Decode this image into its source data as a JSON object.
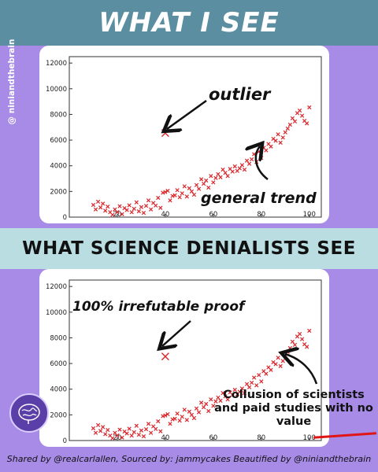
{
  "banners": {
    "top": "WHAT I SEE",
    "middle": "WHAT SCIENCE DENIALISTS SEE"
  },
  "side_tag": "@ niniandthebrain",
  "annotations": {
    "outlier": "outlier",
    "general_trend": "general trend",
    "proof": "100% irrefutable proof",
    "collusion": "Collusion of scientists and paid studies with no value"
  },
  "footer": "Shared by @realcarlallen, Sourced by: jammycakes Beautified by @niniandthebrain",
  "colors": {
    "marker": "#d9262b",
    "arrow": "#111111",
    "accent": "#e01515"
  },
  "chart_data": [
    {
      "type": "scatter",
      "title": "",
      "xlabel": "",
      "ylabel": "",
      "xlim": [
        0,
        105
      ],
      "ylim": [
        0,
        12500
      ],
      "xticks": [
        0,
        20,
        40,
        60,
        80,
        100
      ],
      "yticks": [
        0,
        2000,
        4000,
        6000,
        8000,
        10000,
        12000
      ],
      "grid": false,
      "points": [
        [
          10,
          950
        ],
        [
          11,
          600
        ],
        [
          12,
          1200
        ],
        [
          13,
          750
        ],
        [
          14,
          1050
        ],
        [
          15,
          500
        ],
        [
          16,
          820
        ],
        [
          17,
          380
        ],
        [
          18,
          180
        ],
        [
          19,
          600
        ],
        [
          20,
          400
        ],
        [
          21,
          850
        ],
        [
          22,
          230
        ],
        [
          23,
          700
        ],
        [
          24,
          550
        ],
        [
          25,
          920
        ],
        [
          26,
          380
        ],
        [
          27,
          650
        ],
        [
          28,
          1150
        ],
        [
          29,
          450
        ],
        [
          30,
          780
        ],
        [
          31,
          330
        ],
        [
          32,
          880
        ],
        [
          33,
          1300
        ],
        [
          34,
          600
        ],
        [
          35,
          1100
        ],
        [
          36,
          900
        ],
        [
          37,
          1500
        ],
        [
          38,
          720
        ],
        [
          39,
          1900
        ],
        [
          40,
          1950
        ],
        [
          41,
          2050
        ],
        [
          42,
          1300
        ],
        [
          43,
          1650
        ],
        [
          44,
          1700
        ],
        [
          45,
          2100
        ],
        [
          46,
          1550
        ],
        [
          47,
          1850
        ],
        [
          48,
          2400
        ],
        [
          49,
          1600
        ],
        [
          50,
          2250
        ],
        [
          51,
          2000
        ],
        [
          52,
          1750
        ],
        [
          53,
          2500
        ],
        [
          54,
          2200
        ],
        [
          55,
          2950
        ],
        [
          56,
          2600
        ],
        [
          57,
          2850
        ],
        [
          58,
          2300
        ],
        [
          59,
          3200
        ],
        [
          60,
          2700
        ],
        [
          61,
          3050
        ],
        [
          62,
          3350
        ],
        [
          63,
          3100
        ],
        [
          64,
          3700
        ],
        [
          65,
          3450
        ],
        [
          66,
          3200
        ],
        [
          67,
          3750
        ],
        [
          68,
          3550
        ],
        [
          69,
          3950
        ],
        [
          70,
          3600
        ],
        [
          71,
          3800
        ],
        [
          72,
          4050
        ],
        [
          73,
          3700
        ],
        [
          74,
          4400
        ],
        [
          75,
          4150
        ],
        [
          76,
          4500
        ],
        [
          77,
          4900
        ],
        [
          78,
          4300
        ],
        [
          79,
          5100
        ],
        [
          80,
          4600
        ],
        [
          81,
          5400
        ],
        [
          82,
          5200
        ],
        [
          83,
          5700
        ],
        [
          84,
          5500
        ],
        [
          85,
          6100
        ],
        [
          86,
          5950
        ],
        [
          87,
          6450
        ],
        [
          88,
          5800
        ],
        [
          89,
          6200
        ],
        [
          90,
          6600
        ],
        [
          91,
          6900
        ],
        [
          92,
          7200
        ],
        [
          93,
          7700
        ],
        [
          94,
          7450
        ],
        [
          95,
          8100
        ],
        [
          96,
          8300
        ],
        [
          97,
          7900
        ],
        [
          98,
          7500
        ],
        [
          99,
          7300
        ],
        [
          100,
          8550
        ]
      ],
      "outlier": [
        40,
        6550
      ]
    },
    {
      "type": "scatter",
      "title": "",
      "xlabel": "",
      "ylabel": "",
      "xlim": [
        0,
        105
      ],
      "ylim": [
        0,
        12500
      ],
      "xticks": [
        0,
        20,
        40,
        60,
        80,
        100
      ],
      "yticks": [
        0,
        2000,
        4000,
        6000,
        8000,
        10000,
        12000
      ],
      "grid": false,
      "points": [
        [
          10,
          950
        ],
        [
          11,
          600
        ],
        [
          12,
          1200
        ],
        [
          13,
          750
        ],
        [
          14,
          1050
        ],
        [
          15,
          500
        ],
        [
          16,
          820
        ],
        [
          17,
          380
        ],
        [
          18,
          180
        ],
        [
          19,
          600
        ],
        [
          20,
          400
        ],
        [
          21,
          850
        ],
        [
          22,
          230
        ],
        [
          23,
          700
        ],
        [
          24,
          550
        ],
        [
          25,
          920
        ],
        [
          26,
          380
        ],
        [
          27,
          650
        ],
        [
          28,
          1150
        ],
        [
          29,
          450
        ],
        [
          30,
          780
        ],
        [
          31,
          330
        ],
        [
          32,
          880
        ],
        [
          33,
          1300
        ],
        [
          34,
          600
        ],
        [
          35,
          1100
        ],
        [
          36,
          900
        ],
        [
          37,
          1500
        ],
        [
          38,
          720
        ],
        [
          39,
          1900
        ],
        [
          40,
          1950
        ],
        [
          41,
          2050
        ],
        [
          42,
          1300
        ],
        [
          43,
          1650
        ],
        [
          44,
          1700
        ],
        [
          45,
          2100
        ],
        [
          46,
          1550
        ],
        [
          47,
          1850
        ],
        [
          48,
          2400
        ],
        [
          49,
          1600
        ],
        [
          50,
          2250
        ],
        [
          51,
          2000
        ],
        [
          52,
          1750
        ],
        [
          53,
          2500
        ],
        [
          54,
          2200
        ],
        [
          55,
          2950
        ],
        [
          56,
          2600
        ],
        [
          57,
          2850
        ],
        [
          58,
          2300
        ],
        [
          59,
          3200
        ],
        [
          60,
          2700
        ],
        [
          61,
          3050
        ],
        [
          62,
          3350
        ],
        [
          63,
          3100
        ],
        [
          64,
          3700
        ],
        [
          65,
          3450
        ],
        [
          66,
          3200
        ],
        [
          67,
          3750
        ],
        [
          68,
          3550
        ],
        [
          69,
          3950
        ],
        [
          70,
          3600
        ],
        [
          71,
          3800
        ],
        [
          72,
          4050
        ],
        [
          73,
          3700
        ],
        [
          74,
          4400
        ],
        [
          75,
          4150
        ],
        [
          76,
          4500
        ],
        [
          77,
          4900
        ],
        [
          78,
          4300
        ],
        [
          79,
          5100
        ],
        [
          80,
          4600
        ],
        [
          81,
          5400
        ],
        [
          82,
          5200
        ],
        [
          83,
          5700
        ],
        [
          84,
          5500
        ],
        [
          85,
          6100
        ],
        [
          86,
          5950
        ],
        [
          87,
          6450
        ],
        [
          88,
          5800
        ],
        [
          89,
          6200
        ],
        [
          90,
          6600
        ],
        [
          91,
          6900
        ],
        [
          92,
          7200
        ],
        [
          93,
          7700
        ],
        [
          94,
          7450
        ],
        [
          95,
          8100
        ],
        [
          96,
          8300
        ],
        [
          97,
          7900
        ],
        [
          98,
          7500
        ],
        [
          99,
          7300
        ],
        [
          100,
          8550
        ]
      ],
      "outlier": [
        40,
        6550
      ]
    }
  ]
}
